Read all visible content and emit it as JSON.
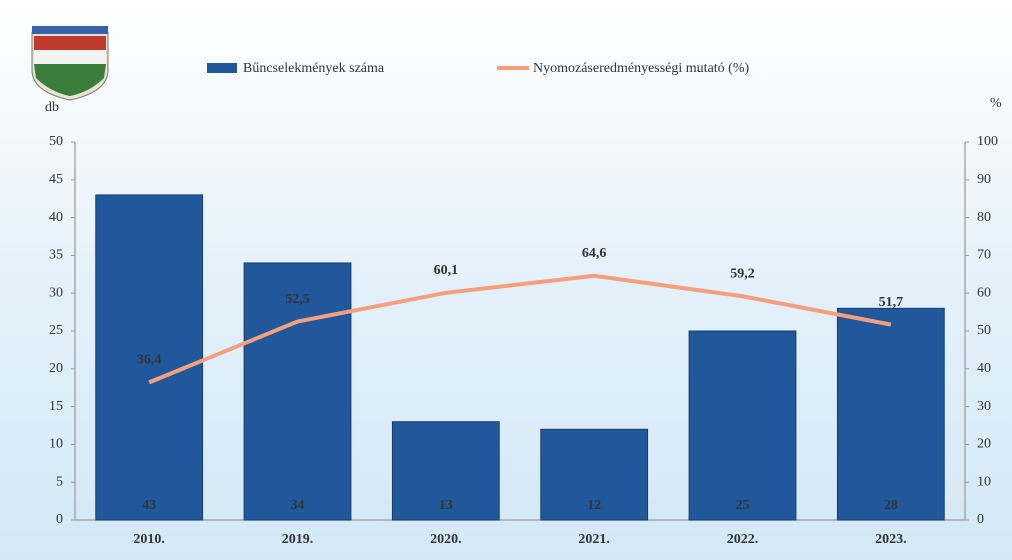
{
  "chart_data": {
    "type": "bar",
    "categories": [
      "2010.",
      "2019.",
      "2020.",
      "2021.",
      "2022.",
      "2023."
    ],
    "series": [
      {
        "name": "Bűncselekmények száma",
        "type": "bar",
        "color": "#20589b",
        "values": [
          43,
          34,
          13,
          12,
          25,
          28
        ]
      },
      {
        "name": "Nyomozáseredményességi mutató (%)",
        "type": "line",
        "axis": "y2",
        "color": "#f4a07c",
        "values": [
          36.4,
          52.5,
          60.1,
          64.6,
          59.2,
          51.7
        ],
        "value_labels": [
          "36,4",
          "52,5",
          "60,1",
          "64,6",
          "59,2",
          "51,7"
        ]
      }
    ],
    "y_label": "db",
    "y2_label": "%",
    "ylim": [
      0,
      50
    ],
    "yticks": [
      0,
      5,
      10,
      15,
      20,
      25,
      30,
      35,
      40,
      45,
      50
    ],
    "y2lim": [
      0,
      100
    ],
    "y2ticks": [
      0,
      10,
      20,
      30,
      40,
      50,
      60,
      70,
      80,
      90,
      100
    ]
  }
}
